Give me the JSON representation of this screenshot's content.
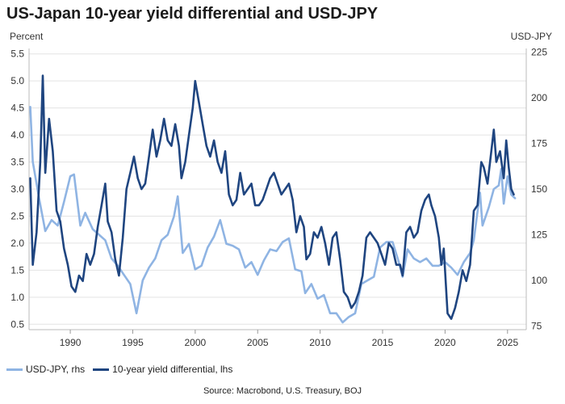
{
  "chart_data": {
    "type": "line",
    "title": "US-Japan 10-year yield differential and USD-JPY",
    "ylabel_left": "Percent",
    "ylabel_right": "USD-JPY",
    "x_ticks": [
      "1990",
      "1995",
      "2000",
      "2005",
      "2010",
      "2015",
      "2020",
      "2025"
    ],
    "x_tick_values": [
      1990,
      1995,
      2000,
      2005,
      2010,
      2015,
      2020,
      2025
    ],
    "xlim": [
      1986.7,
      2026.5
    ],
    "ylim_left": [
      0.4,
      5.6
    ],
    "ylim_right": [
      73,
      227
    ],
    "y_ticks_left": [
      "0.5",
      "1.0",
      "1.5",
      "2.0",
      "2.5",
      "3.0",
      "3.5",
      "4.0",
      "4.5",
      "5.0",
      "5.5"
    ],
    "y_ticks_right": [
      "75",
      "100",
      "125",
      "150",
      "175",
      "200",
      "225"
    ],
    "grid": true,
    "series": [
      {
        "name": "USD-JPY, rhs",
        "axis": "right",
        "color": "#8fb4e3",
        "points": [
          [
            1986.8,
            195
          ],
          [
            1987.0,
            165
          ],
          [
            1987.5,
            145
          ],
          [
            1988.0,
            127
          ],
          [
            1988.5,
            133
          ],
          [
            1989.0,
            130
          ],
          [
            1989.5,
            143
          ],
          [
            1990.0,
            157
          ],
          [
            1990.3,
            158
          ],
          [
            1990.8,
            130
          ],
          [
            1991.2,
            137
          ],
          [
            1991.8,
            128
          ],
          [
            1992.3,
            125
          ],
          [
            1992.8,
            122
          ],
          [
            1993.3,
            112
          ],
          [
            1993.8,
            108
          ],
          [
            1994.3,
            103
          ],
          [
            1994.8,
            98
          ],
          [
            1995.3,
            82
          ],
          [
            1995.8,
            100
          ],
          [
            1996.3,
            107
          ],
          [
            1996.8,
            112
          ],
          [
            1997.3,
            122
          ],
          [
            1997.8,
            125
          ],
          [
            1998.3,
            135
          ],
          [
            1998.6,
            146
          ],
          [
            1999.0,
            115
          ],
          [
            1999.5,
            120
          ],
          [
            2000.0,
            106
          ],
          [
            2000.5,
            108
          ],
          [
            2001.0,
            118
          ],
          [
            2001.5,
            124
          ],
          [
            2002.0,
            133
          ],
          [
            2002.5,
            120
          ],
          [
            2003.0,
            119
          ],
          [
            2003.5,
            117
          ],
          [
            2004.0,
            107
          ],
          [
            2004.5,
            110
          ],
          [
            2005.0,
            103
          ],
          [
            2005.5,
            111
          ],
          [
            2006.0,
            117
          ],
          [
            2006.5,
            116
          ],
          [
            2007.0,
            121
          ],
          [
            2007.5,
            123
          ],
          [
            2008.0,
            106
          ],
          [
            2008.5,
            105
          ],
          [
            2008.8,
            93
          ],
          [
            2009.3,
            98
          ],
          [
            2009.8,
            90
          ],
          [
            2010.3,
            92
          ],
          [
            2010.8,
            82
          ],
          [
            2011.3,
            82
          ],
          [
            2011.8,
            77
          ],
          [
            2012.3,
            80
          ],
          [
            2012.8,
            82
          ],
          [
            2013.3,
            98
          ],
          [
            2013.8,
            100
          ],
          [
            2014.3,
            102
          ],
          [
            2014.8,
            118
          ],
          [
            2015.3,
            121
          ],
          [
            2015.8,
            121
          ],
          [
            2016.3,
            110
          ],
          [
            2016.6,
            102
          ],
          [
            2017.0,
            117
          ],
          [
            2017.5,
            112
          ],
          [
            2018.0,
            110
          ],
          [
            2018.5,
            112
          ],
          [
            2019.0,
            108
          ],
          [
            2019.5,
            108
          ],
          [
            2020.0,
            110
          ],
          [
            2020.5,
            107
          ],
          [
            2021.0,
            103
          ],
          [
            2021.5,
            110
          ],
          [
            2022.0,
            115
          ],
          [
            2022.3,
            122
          ],
          [
            2022.8,
            148
          ],
          [
            2023.0,
            130
          ],
          [
            2023.5,
            140
          ],
          [
            2023.9,
            150
          ],
          [
            2024.3,
            152
          ],
          [
            2024.5,
            161
          ],
          [
            2024.7,
            142
          ],
          [
            2025.0,
            157
          ],
          [
            2025.3,
            147
          ],
          [
            2025.6,
            145
          ]
        ]
      },
      {
        "name": "10-year yield differential, lhs",
        "axis": "left",
        "color": "#1f4580",
        "points": [
          [
            1986.8,
            3.2
          ],
          [
            1987.0,
            1.6
          ],
          [
            1987.3,
            2.2
          ],
          [
            1987.6,
            3.5
          ],
          [
            1987.8,
            5.1
          ],
          [
            1988.0,
            3.3
          ],
          [
            1988.3,
            4.3
          ],
          [
            1988.6,
            3.7
          ],
          [
            1988.9,
            2.6
          ],
          [
            1989.2,
            2.4
          ],
          [
            1989.5,
            1.9
          ],
          [
            1989.8,
            1.6
          ],
          [
            1990.1,
            1.2
          ],
          [
            1990.4,
            1.1
          ],
          [
            1990.7,
            1.4
          ],
          [
            1991.0,
            1.3
          ],
          [
            1991.3,
            1.8
          ],
          [
            1991.6,
            1.6
          ],
          [
            1991.9,
            1.8
          ],
          [
            1992.2,
            2.3
          ],
          [
            1992.5,
            2.7
          ],
          [
            1992.8,
            3.1
          ],
          [
            1993.0,
            2.4
          ],
          [
            1993.3,
            2.2
          ],
          [
            1993.6,
            1.7
          ],
          [
            1993.9,
            1.4
          ],
          [
            1994.2,
            2.1
          ],
          [
            1994.5,
            3.0
          ],
          [
            1994.8,
            3.3
          ],
          [
            1995.1,
            3.6
          ],
          [
            1995.4,
            3.2
          ],
          [
            1995.7,
            3.0
          ],
          [
            1996.0,
            3.1
          ],
          [
            1996.3,
            3.6
          ],
          [
            1996.6,
            4.1
          ],
          [
            1996.9,
            3.6
          ],
          [
            1997.2,
            3.9
          ],
          [
            1997.5,
            4.3
          ],
          [
            1997.8,
            3.9
          ],
          [
            1998.1,
            3.8
          ],
          [
            1998.4,
            4.2
          ],
          [
            1998.7,
            3.8
          ],
          [
            1998.9,
            3.2
          ],
          [
            1999.2,
            3.5
          ],
          [
            1999.5,
            4.0
          ],
          [
            1999.8,
            4.5
          ],
          [
            2000.0,
            5.0
          ],
          [
            2000.3,
            4.6
          ],
          [
            2000.6,
            4.2
          ],
          [
            2000.9,
            3.8
          ],
          [
            2001.2,
            3.6
          ],
          [
            2001.5,
            3.9
          ],
          [
            2001.8,
            3.5
          ],
          [
            2002.1,
            3.3
          ],
          [
            2002.4,
            3.7
          ],
          [
            2002.7,
            2.9
          ],
          [
            2003.0,
            2.7
          ],
          [
            2003.3,
            2.8
          ],
          [
            2003.6,
            3.3
          ],
          [
            2003.9,
            2.9
          ],
          [
            2004.2,
            3.0
          ],
          [
            2004.5,
            3.1
          ],
          [
            2004.8,
            2.7
          ],
          [
            2005.1,
            2.7
          ],
          [
            2005.4,
            2.8
          ],
          [
            2005.7,
            3.0
          ],
          [
            2006.0,
            3.2
          ],
          [
            2006.3,
            3.3
          ],
          [
            2006.6,
            3.1
          ],
          [
            2006.9,
            2.9
          ],
          [
            2007.2,
            3.0
          ],
          [
            2007.5,
            3.1
          ],
          [
            2007.8,
            2.8
          ],
          [
            2008.1,
            2.2
          ],
          [
            2008.4,
            2.5
          ],
          [
            2008.7,
            2.3
          ],
          [
            2008.9,
            1.7
          ],
          [
            2009.2,
            1.8
          ],
          [
            2009.5,
            2.2
          ],
          [
            2009.8,
            2.1
          ],
          [
            2010.1,
            2.3
          ],
          [
            2010.4,
            2.0
          ],
          [
            2010.7,
            1.6
          ],
          [
            2011.0,
            2.1
          ],
          [
            2011.3,
            2.2
          ],
          [
            2011.6,
            1.7
          ],
          [
            2011.9,
            1.1
          ],
          [
            2012.2,
            1.0
          ],
          [
            2012.5,
            0.8
          ],
          [
            2012.8,
            0.9
          ],
          [
            2013.1,
            1.1
          ],
          [
            2013.4,
            1.4
          ],
          [
            2013.7,
            2.1
          ],
          [
            2014.0,
            2.2
          ],
          [
            2014.3,
            2.1
          ],
          [
            2014.6,
            2.0
          ],
          [
            2014.9,
            1.8
          ],
          [
            2015.2,
            1.6
          ],
          [
            2015.5,
            2.0
          ],
          [
            2015.8,
            1.9
          ],
          [
            2016.1,
            1.6
          ],
          [
            2016.4,
            1.6
          ],
          [
            2016.6,
            1.4
          ],
          [
            2016.9,
            2.2
          ],
          [
            2017.2,
            2.3
          ],
          [
            2017.5,
            2.1
          ],
          [
            2017.8,
            2.2
          ],
          [
            2018.1,
            2.6
          ],
          [
            2018.4,
            2.8
          ],
          [
            2018.7,
            2.9
          ],
          [
            2018.9,
            2.7
          ],
          [
            2019.2,
            2.5
          ],
          [
            2019.5,
            2.1
          ],
          [
            2019.7,
            1.6
          ],
          [
            2019.9,
            1.9
          ],
          [
            2020.2,
            0.7
          ],
          [
            2020.5,
            0.6
          ],
          [
            2020.8,
            0.8
          ],
          [
            2021.1,
            1.1
          ],
          [
            2021.4,
            1.5
          ],
          [
            2021.7,
            1.3
          ],
          [
            2022.0,
            1.6
          ],
          [
            2022.3,
            2.6
          ],
          [
            2022.6,
            2.7
          ],
          [
            2022.9,
            3.5
          ],
          [
            2023.1,
            3.4
          ],
          [
            2023.4,
            3.1
          ],
          [
            2023.7,
            3.7
          ],
          [
            2023.9,
            4.1
          ],
          [
            2024.1,
            3.5
          ],
          [
            2024.4,
            3.7
          ],
          [
            2024.7,
            3.2
          ],
          [
            2024.9,
            3.9
          ],
          [
            2025.1,
            3.4
          ],
          [
            2025.3,
            3.0
          ],
          [
            2025.5,
            2.9
          ]
        ]
      }
    ]
  },
  "legend": {
    "items": [
      {
        "label": "USD-JPY, rhs",
        "color": "#8fb4e3"
      },
      {
        "label": "10-year yield differential, lhs",
        "color": "#1f4580"
      }
    ]
  },
  "footer": {
    "source": "Source: Macrobond, U.S. Treasury, BOJ"
  }
}
